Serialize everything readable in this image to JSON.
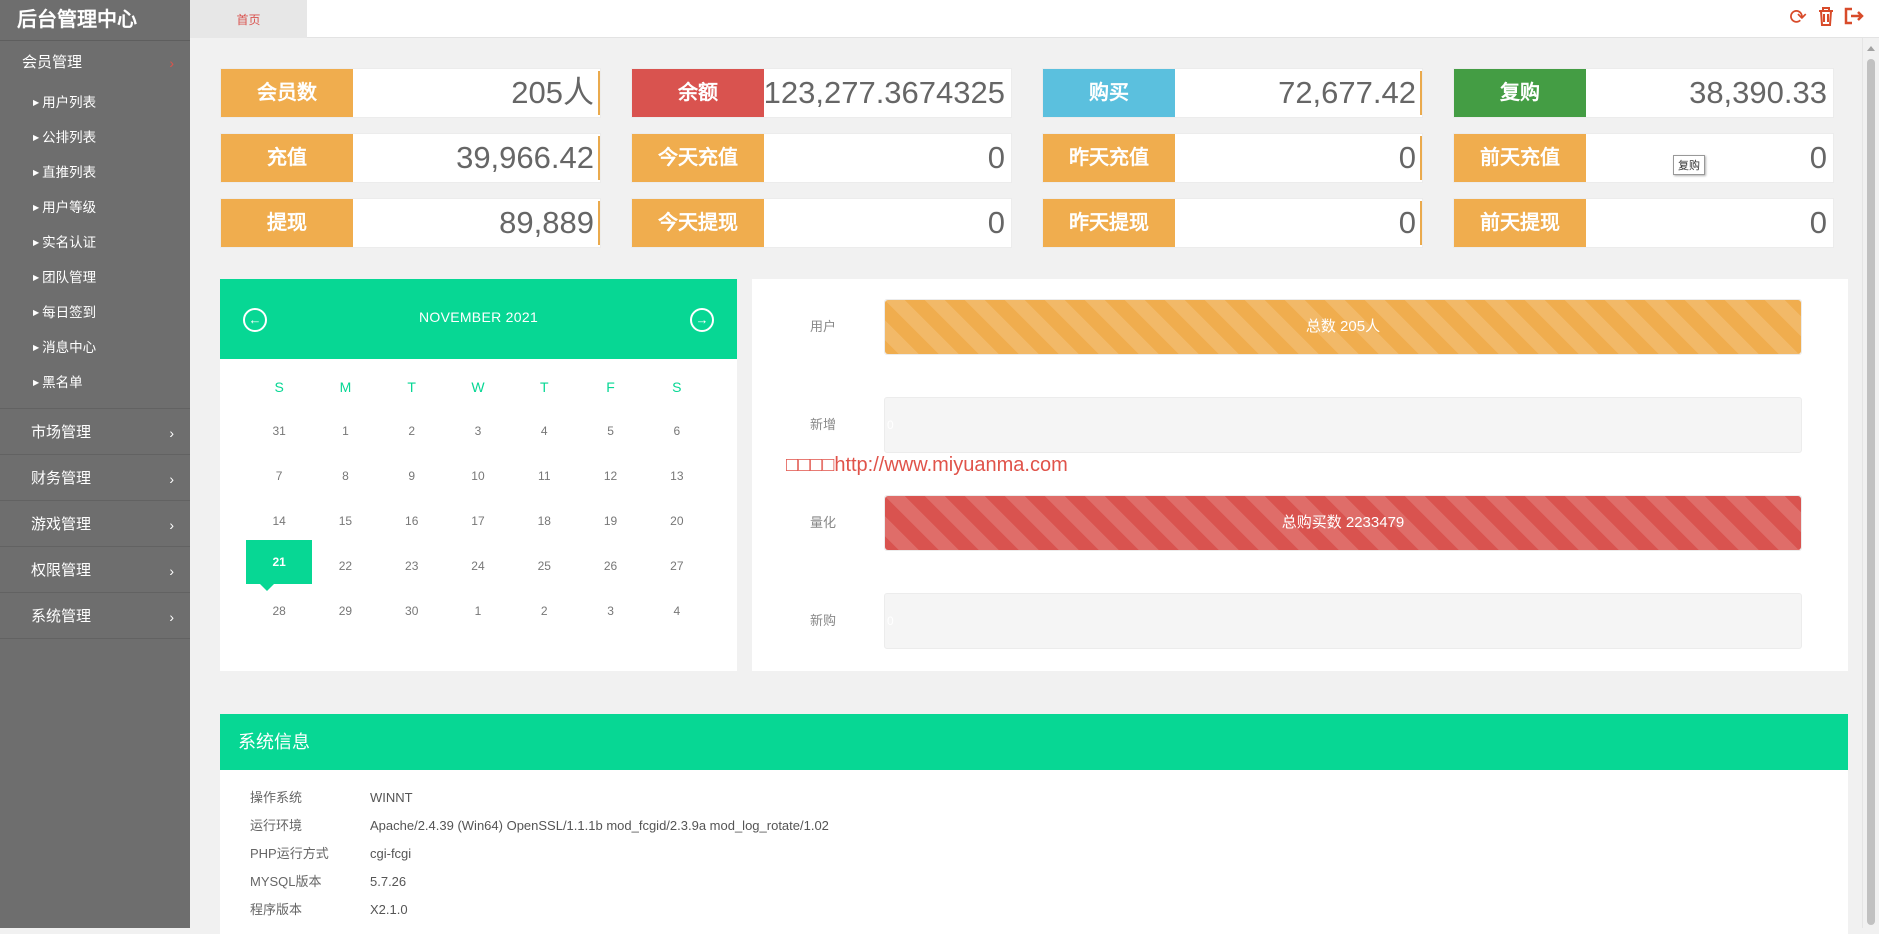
{
  "brand": "后台管理中心",
  "topbar": {
    "home_tab": "首页"
  },
  "sidebar": {
    "active_group": "会员管理",
    "sub_items": [
      "用户列表",
      "公排列表",
      "直推列表",
      "用户等级",
      "实名认证",
      "团队管理",
      "每日签到",
      "消息中心",
      "黑名单"
    ],
    "groups": [
      "市场管理",
      "财务管理",
      "游戏管理",
      "权限管理",
      "系统管理"
    ]
  },
  "stats": [
    {
      "label": "会员数",
      "value": "205人",
      "color": "#f0ad4e"
    },
    {
      "label": "余额",
      "value": "123,277.3674325",
      "color": "#d9534f"
    },
    {
      "label": "购买",
      "value": "72,677.42",
      "color": "#5bc0de"
    },
    {
      "label": "复购",
      "value": "38,390.33",
      "color": "#449d44"
    },
    {
      "label": "充值",
      "value": "39,966.42",
      "color": "#f0ad4e"
    },
    {
      "label": "今天充值",
      "value": "0",
      "color": "#f0ad4e"
    },
    {
      "label": "昨天充值",
      "value": "0",
      "color": "#f0ad4e"
    },
    {
      "label": "前天充值",
      "value": "0",
      "color": "#f0ad4e"
    },
    {
      "label": "提现",
      "value": "89,889",
      "color": "#f0ad4e"
    },
    {
      "label": "今天提现",
      "value": "0",
      "color": "#f0ad4e"
    },
    {
      "label": "昨天提现",
      "value": "0",
      "color": "#f0ad4e"
    },
    {
      "label": "前天提现",
      "value": "0",
      "color": "#f0ad4e"
    }
  ],
  "tooltip": "复购",
  "calendar": {
    "title": "NOVEMBER 2021",
    "prev_icon": "←",
    "next_icon": "→",
    "weekdays": [
      "S",
      "M",
      "T",
      "W",
      "T",
      "F",
      "S"
    ],
    "weeks": [
      [
        "31",
        "1",
        "2",
        "3",
        "4",
        "5",
        "6"
      ],
      [
        "7",
        "8",
        "9",
        "10",
        "11",
        "12",
        "13"
      ],
      [
        "14",
        "15",
        "16",
        "17",
        "18",
        "19",
        "20"
      ],
      [
        "21",
        "22",
        "23",
        "24",
        "25",
        "26",
        "27"
      ],
      [
        "28",
        "29",
        "30",
        "1",
        "2",
        "3",
        "4"
      ]
    ],
    "today": "21"
  },
  "bars": [
    {
      "label": "用户",
      "text": "总数 205人",
      "fill_percent": 100,
      "style": "yellow"
    },
    {
      "label": "新增",
      "text": "0",
      "fill_percent": 0,
      "style": "empty"
    },
    {
      "label": "量化",
      "text": "总购买数 2233479",
      "fill_percent": 100,
      "style": "red"
    },
    {
      "label": "新购",
      "text": "0",
      "fill_percent": 0,
      "style": "empty"
    }
  ],
  "watermark": "□□□□http://www.miyuanma.com",
  "sysinfo": {
    "title": "系统信息",
    "rows": [
      {
        "k": "操作系统",
        "v": "WINNT"
      },
      {
        "k": "运行环境",
        "v": "Apache/2.4.39 (Win64) OpenSSL/1.1.1b mod_fcgid/2.3.9a mod_log_rotate/1.02"
      },
      {
        "k": "PHP运行方式",
        "v": "cgi-fcgi"
      },
      {
        "k": "MYSQL版本",
        "v": "5.7.26"
      },
      {
        "k": "程序版本",
        "v": "X2.1.0"
      }
    ]
  },
  "icons": {
    "refresh": "⟳",
    "trash": "🗑",
    "logout": "⇥"
  }
}
